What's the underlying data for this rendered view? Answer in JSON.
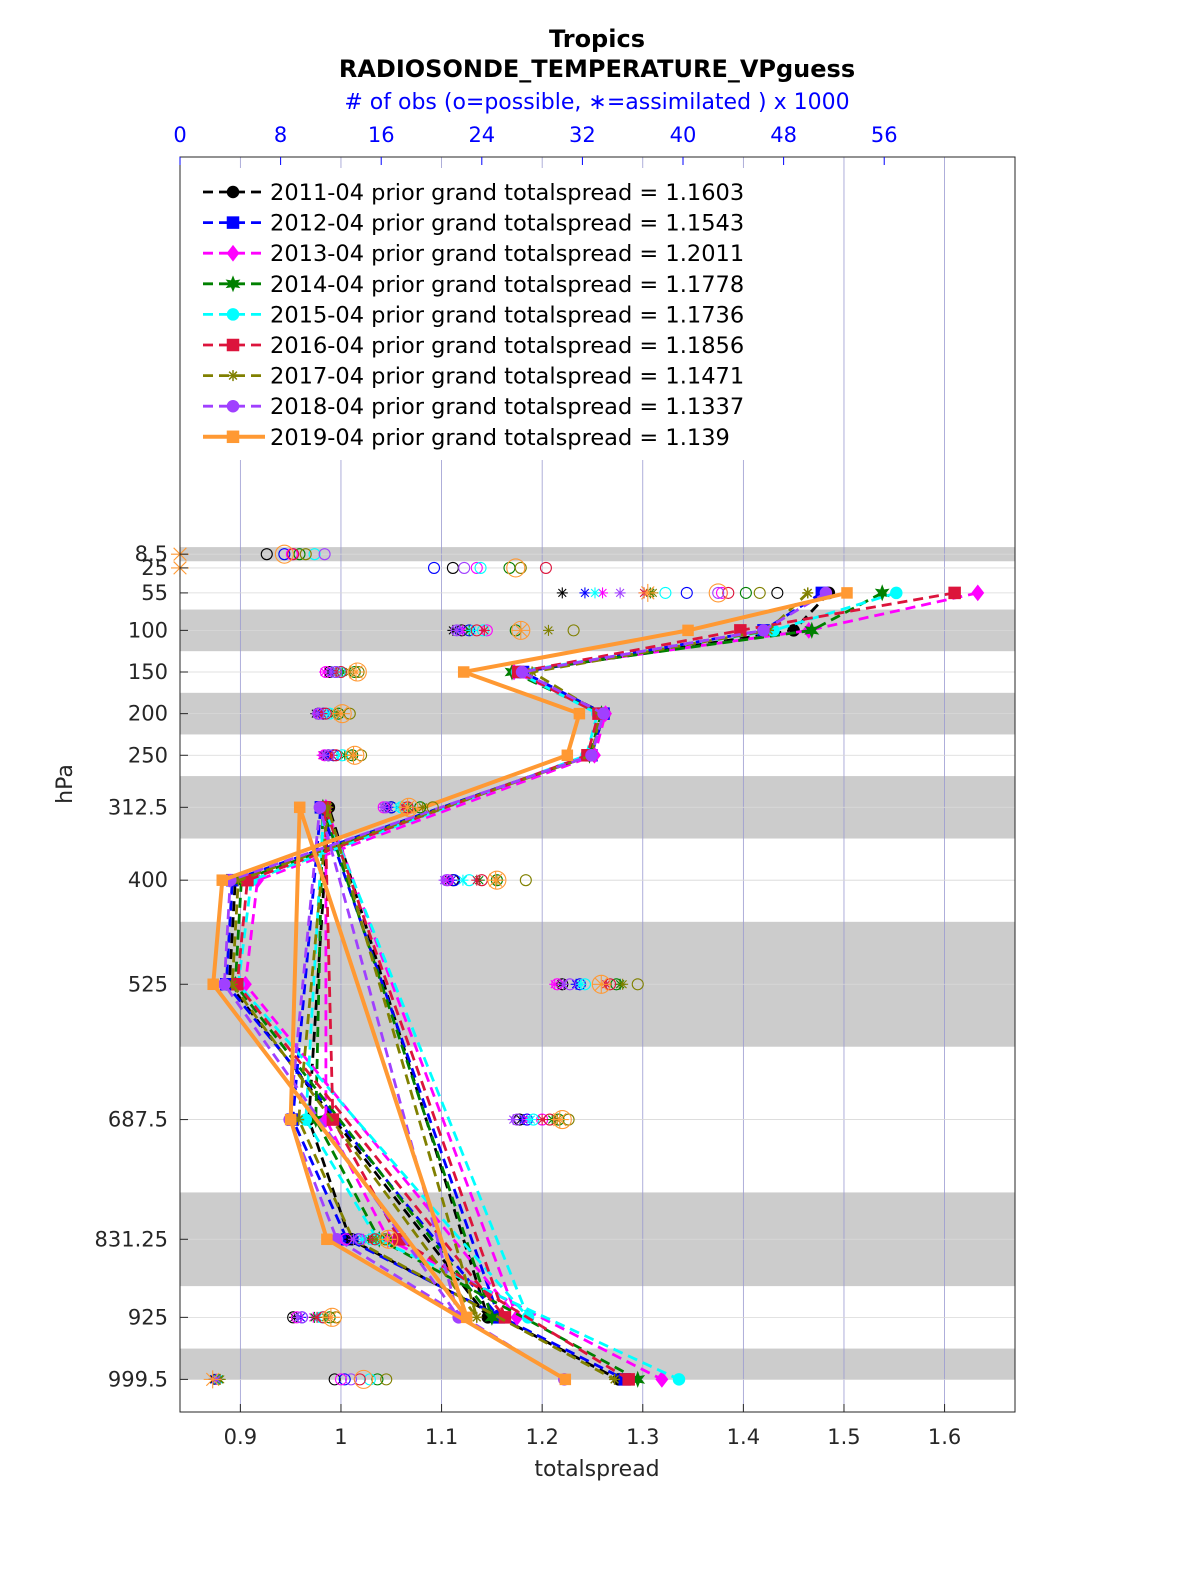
{
  "chart_data": {
    "type": "line",
    "title": "Tropics",
    "subtitle": "RADIOSONDE_TEMPERATURE_VPguess",
    "top_axis_label": "# of obs (o=possible, ∗=assimilated ) x 1000",
    "xlabel": "totalspread",
    "ylabel": "hPa",
    "xlim": [
      0.84,
      1.67
    ],
    "top_xlim": [
      0,
      66.4
    ],
    "x_ticks": [
      "0.9",
      "1",
      "1.1",
      "1.2",
      "1.3",
      "1.4",
      "1.5",
      "1.6"
    ],
    "top_ticks": [
      "0",
      "8",
      "16",
      "24",
      "32",
      "40",
      "48",
      "56"
    ],
    "levels": [
      "8.5",
      "25",
      "55",
      "100",
      "150",
      "200",
      "250",
      "312.5",
      "400",
      "525",
      "687.5",
      "831.25",
      "925",
      "999.5"
    ],
    "shaded_bands": [
      [
        0,
        17
      ],
      [
        75,
        125
      ],
      [
        175,
        225
      ],
      [
        275,
        350
      ],
      [
        450,
        600
      ],
      [
        775,
        887.5
      ],
      [
        962.5,
        1000
      ]
    ],
    "series": [
      {
        "name": "2011-04",
        "label": "2011-04 prior grand totalspread = 1.1603",
        "color": "#000000",
        "marker": "circle",
        "style": "dashed",
        "values": {
          "55": 1.485,
          "100": 1.45,
          "150": 1.178,
          "200": 1.262,
          "250": 1.248,
          "312.5": 0.988,
          "400": 0.895,
          "525": 0.889,
          "687.5": 0.968,
          "831.25": 1.009,
          "925": 1.146,
          "999.5": 1.276
        },
        "possible": {
          "8.5": 6.9,
          "25": 21.7,
          "55": 47.5,
          "100": 22.4,
          "150": 11.9,
          "200": 11.0,
          "250": 11.8,
          "312.5": 16.8,
          "400": 21.7,
          "525": 30.4,
          "687.5": 27.0,
          "831.25": 13.7,
          "925": 9.0,
          "999.5": 12.3
        },
        "assimilated": {
          "55": 30.4,
          "100": 21.7,
          "150": 11.8,
          "200": 10.8,
          "250": 11.4,
          "312.5": 16.4,
          "400": 21.4,
          "525": 30.3,
          "687.5": 27.1,
          "831.25": 13.5,
          "925": 9.1,
          "999.5": 2.7
        }
      },
      {
        "name": "2012-04",
        "label": "2012-04 prior grand totalspread = 1.1543",
        "color": "#0000ff",
        "marker": "square",
        "style": "dashed",
        "values": {
          "55": 1.478,
          "100": 1.42,
          "150": 1.181,
          "200": 1.261,
          "250": 1.249,
          "312.5": 0.98,
          "400": 0.892,
          "525": 0.886,
          "687.5": 0.952,
          "831.25": 1.006,
          "925": 1.157,
          "999.5": 1.282
        },
        "possible": {
          "8.5": 8.3,
          "25": 20.2,
          "55": 40.3,
          "100": 23.0,
          "150": 12.4,
          "200": 11.4,
          "250": 12.2,
          "312.5": 16.8,
          "400": 21.8,
          "525": 31.8,
          "687.5": 27.6,
          "831.25": 14.2,
          "925": 9.7,
          "999.5": 13.1
        },
        "assimilated": {
          "55": 32.2,
          "100": 22.2,
          "150": 12.1,
          "200": 11.1,
          "250": 11.7,
          "312.5": 16.6,
          "400": 21.6,
          "525": 31.5,
          "687.5": 27.3,
          "831.25": 14.0,
          "925": 9.6,
          "999.5": 2.8
        }
      },
      {
        "name": "2013-04",
        "label": "2013-04 prior grand totalspread = 1.2011",
        "color": "#ff00ff",
        "marker": "diamond",
        "style": "dashed",
        "values": {
          "55": 1.633,
          "100": 1.465,
          "150": 1.172,
          "200": 1.263,
          "250": 1.252,
          "312.5": 0.985,
          "400": 0.917,
          "525": 0.905,
          "687.5": 0.985,
          "831.25": 1.047,
          "925": 1.175,
          "999.5": 1.319
        },
        "possible": {
          "8.5": 8.9,
          "25": 23.6,
          "55": 43.1,
          "100": 24.4,
          "150": 11.6,
          "200": 11.1,
          "250": 11.5,
          "312.5": 16.2,
          "400": 21.3,
          "525": 30.0,
          "687.5": 28.8,
          "831.25": 13.2,
          "925": 9.3,
          "999.5": 12.8
        },
        "assimilated": {
          "55": 33.6,
          "100": 22.5,
          "150": 11.5,
          "200": 10.9,
          "250": 11.3,
          "312.5": 16.2,
          "400": 21.2,
          "525": 29.8,
          "687.5": 27.6,
          "831.25": 14.6,
          "925": 10.6,
          "999.5": 2.9
        }
      },
      {
        "name": "2014-04",
        "label": "2014-04 prior grand totalspread = 1.1778",
        "color": "#008000",
        "marker": "hexagram",
        "style": "dashed",
        "values": {
          "55": 1.538,
          "100": 1.468,
          "150": 1.17,
          "200": 1.259,
          "250": 1.247,
          "312.5": 0.982,
          "400": 0.901,
          "525": 0.895,
          "687.5": 0.975,
          "831.25": 1.038,
          "925": 1.15,
          "999.5": 1.295
        },
        "possible": {
          "8.5": 9.5,
          "25": 26.2,
          "55": 45.0,
          "100": 26.7,
          "150": 13.9,
          "200": 12.6,
          "250": 13.7,
          "312.5": 19.1,
          "400": 25.2,
          "525": 34.7,
          "687.5": 30.1,
          "831.25": 16.3,
          "925": 11.9,
          "999.5": 15.7
        },
        "assimilated": {
          "55": 37.4,
          "100": 23.0,
          "150": 12.9,
          "200": 12.3,
          "250": 13.1,
          "312.5": 18.2,
          "400": 23.8,
          "525": 35.0,
          "687.5": 29.6,
          "831.25": 15.0,
          "925": 10.7,
          "999.5": 3.1
        }
      },
      {
        "name": "2015-04",
        "label": "2015-04 prior grand totalspread = 1.1736",
        "color": "#00ffff",
        "marker": "circle",
        "style": "dashed",
        "values": {
          "55": 1.552,
          "100": 1.43,
          "150": 1.175,
          "200": 1.255,
          "250": 1.244,
          "312.5": 0.983,
          "400": 0.911,
          "525": 0.898,
          "687.5": 0.965,
          "831.25": 1.036,
          "925": 1.186,
          "999.5": 1.336
        },
        "possible": {
          "8.5": 10.7,
          "25": 23.9,
          "55": 38.6,
          "100": 24.1,
          "150": 12.7,
          "200": 11.9,
          "250": 12.9,
          "312.5": 17.6,
          "400": 23.0,
          "525": 32.2,
          "687.5": 28.1,
          "831.25": 15.2,
          "925": 11.3,
          "999.5": 15.1
        },
        "assimilated": {
          "55": 33.0,
          "100": 23.2,
          "150": 12.5,
          "200": 11.7,
          "250": 12.6,
          "312.5": 17.4,
          "400": 22.5,
          "525": 31.9,
          "687.5": 27.9,
          "831.25": 14.5,
          "925": 11.0,
          "999.5": 3.0
        }
      },
      {
        "name": "2016-04",
        "label": "2016-04 prior grand totalspread = 1.1856",
        "color": "#dc143c",
        "marker": "square",
        "style": "dashed",
        "values": {
          "55": 1.61,
          "100": 1.397,
          "150": 1.176,
          "200": 1.256,
          "250": 1.245,
          "312.5": 0.984,
          "400": 0.907,
          "525": 0.897,
          "687.5": 0.992,
          "831.25": 1.058,
          "925": 1.163,
          "999.5": 1.286
        },
        "possible": {
          "8.5": 9.0,
          "25": 29.1,
          "55": 43.6,
          "100": 23.6,
          "150": 12.8,
          "200": 11.6,
          "250": 12.4,
          "312.5": 18.1,
          "400": 24.0,
          "525": 34.2,
          "687.5": 29.4,
          "831.25": 15.5,
          "925": 11.4,
          "999.5": 14.3
        },
        "assimilated": {
          "55": 36.9,
          "100": 24.2,
          "150": 12.4,
          "200": 11.3,
          "250": 12.1,
          "312.5": 17.8,
          "400": 23.6,
          "525": 33.9,
          "687.5": 28.8,
          "831.25": 15.3,
          "925": 10.9,
          "999.5": 2.9
        }
      },
      {
        "name": "2017-04",
        "label": "2017-04 prior grand totalspread = 1.1471",
        "color": "#808000",
        "marker": "asterisk",
        "style": "dashed",
        "values": {
          "55": 1.464,
          "100": 1.425,
          "150": 1.19,
          "200": 1.258,
          "250": 1.249,
          "312.5": 0.987,
          "400": 0.898,
          "525": 0.892,
          "687.5": 0.958,
          "831.25": 1.012,
          "925": 1.135,
          "999.5": 1.272
        },
        "possible": {
          "8.5": 10.0,
          "25": 27.1,
          "55": 46.1,
          "100": 31.3,
          "150": 14.2,
          "200": 13.5,
          "250": 14.4,
          "312.5": 20.1,
          "400": 27.5,
          "525": 36.4,
          "687.5": 30.9,
          "831.25": 16.4,
          "925": 12.4,
          "999.5": 16.4
        },
        "assimilated": {
          "55": 37.6,
          "100": 29.3,
          "150": 13.5,
          "200": 12.5,
          "250": 13.7,
          "312.5": 19.3,
          "400": 25.2,
          "525": 35.2,
          "687.5": 30.0,
          "831.25": 15.6,
          "925": 11.6,
          "999.5": 3.2
        }
      },
      {
        "name": "2018-04",
        "label": "2018-04 prior grand totalspread = 1.1337",
        "color": "#a040ff",
        "marker": "circle",
        "style": "dashed",
        "values": {
          "55": 1.482,
          "100": 1.42,
          "150": 1.18,
          "200": 1.261,
          "250": 1.249,
          "312.5": 0.979,
          "400": 0.89,
          "525": 0.884,
          "687.5": 0.949,
          "831.25": 0.996,
          "925": 1.117,
          "999.5": 1.222
        },
        "possible": {
          "8.5": 11.5,
          "25": 22.6,
          "55": 42.8,
          "100": 22.0,
          "150": 12.4,
          "200": 11.0,
          "250": 11.8,
          "312.5": 16.4,
          "400": 21.2,
          "525": 31.0,
          "687.5": 26.8,
          "831.25": 14.3,
          "925": 9.7,
          "999.5": 13.6
        },
        "assimilated": {
          "55": 35.0,
          "100": 22.0,
          "150": 12.0,
          "200": 10.9,
          "250": 11.5,
          "312.5": 16.2,
          "400": 21.0,
          "525": 30.5,
          "687.5": 26.5,
          "831.25": 13.8,
          "925": 9.4,
          "999.5": 2.9
        }
      },
      {
        "name": "2019-04",
        "label": "2019-04 prior grand totalspread = 1.139",
        "color": "#ff9933",
        "marker": "square",
        "style": "solid",
        "values": {
          "55": 1.503,
          "100": 1.345,
          "150": 1.122,
          "200": 1.237,
          "250": 1.225,
          "312.5": 0.959,
          "400": 0.882,
          "525": 0.873,
          "687.5": 0.95,
          "831.25": 0.986,
          "925": 1.125,
          "999.5": 1.223
        },
        "possible": {
          "8.5": 8.3,
          "25": 26.7,
          "55": 42.8,
          "100": 27.1,
          "150": 14.1,
          "200": 12.9,
          "250": 13.9,
          "312.5": 18.2,
          "400": 25.2,
          "525": 33.5,
          "687.5": 30.4,
          "831.25": 16.6,
          "925": 12.1,
          "999.5": 14.6
        },
        "assimilated": {
          "8.5": 0.0,
          "25": 0.0,
          "55": 37.2,
          "100": 27.1,
          "150": 14.0,
          "200": 12.8,
          "250": 13.8,
          "312.5": 18.1,
          "400": 25.1,
          "525": 33.5,
          "687.5": 30.2,
          "831.25": 16.5,
          "925": 12.0,
          "999.5": 2.6
        }
      }
    ]
  }
}
